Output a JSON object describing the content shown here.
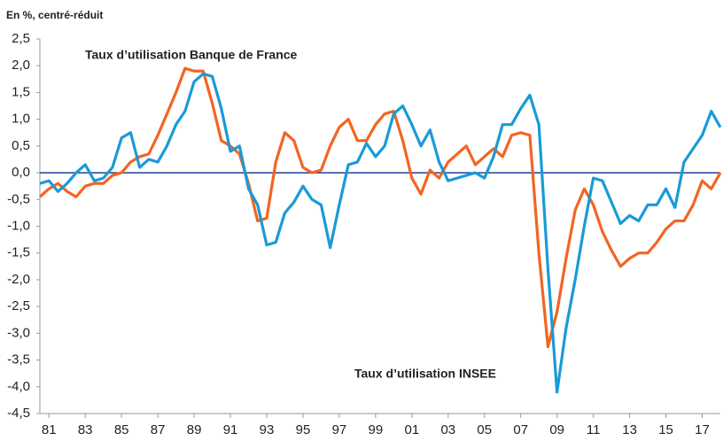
{
  "chart_data": {
    "type": "line",
    "title": "En %, centré-réduit",
    "annotations": [
      "Taux d’utilisation  Banque de France",
      "Taux d’utilisation  INSEE"
    ],
    "x": [
      1980.5,
      1981,
      1981.5,
      1982,
      1982.5,
      1983,
      1983.5,
      1984,
      1984.5,
      1985,
      1985.5,
      1986,
      1986.5,
      1987,
      1987.5,
      1988,
      1988.5,
      1989,
      1989.5,
      1990,
      1990.5,
      1991,
      1991.5,
      1992,
      1992.5,
      1993,
      1993.5,
      1994,
      1994.5,
      1995,
      1995.5,
      1996,
      1996.5,
      1997,
      1997.5,
      1998,
      1998.5,
      1999,
      1999.5,
      2000,
      2000.5,
      2001,
      2001.5,
      2002,
      2002.5,
      2003,
      2003.5,
      2004,
      2004.5,
      2005,
      2005.5,
      2006,
      2006.5,
      2007,
      2007.5,
      2008,
      2008.5,
      2009,
      2009.5,
      2010,
      2010.5,
      2011,
      2011.5,
      2012,
      2012.5,
      2013,
      2013.5,
      2014,
      2014.5,
      2015,
      2015.5,
      2016,
      2016.5,
      2017,
      2017.5,
      2018
    ],
    "series": [
      {
        "name": "Taux d’utilisation  Banque de France",
        "color": "#f26522",
        "values": [
          -0.45,
          -0.3,
          -0.2,
          -0.35,
          -0.45,
          -0.25,
          -0.2,
          -0.2,
          -0.05,
          0.0,
          0.2,
          0.3,
          0.35,
          0.7,
          1.1,
          1.5,
          1.95,
          1.9,
          1.9,
          1.3,
          0.6,
          0.5,
          0.35,
          -0.2,
          -0.9,
          -0.85,
          0.2,
          0.75,
          0.6,
          0.1,
          0.0,
          0.05,
          0.5,
          0.85,
          1.0,
          0.6,
          0.6,
          0.9,
          1.1,
          1.15,
          0.6,
          -0.1,
          -0.4,
          0.05,
          -0.1,
          0.2,
          0.35,
          0.5,
          0.15,
          0.3,
          0.45,
          0.3,
          0.7,
          0.75,
          0.7,
          -1.5,
          -3.25,
          -2.6,
          -1.6,
          -0.7,
          -0.3,
          -0.6,
          -1.1,
          -1.45,
          -1.75,
          -1.6,
          -1.5,
          -1.5,
          -1.3,
          -1.05,
          -0.9,
          -0.9,
          -0.6,
          -0.15,
          -0.3,
          0.0
        ]
      },
      {
        "name": "Taux d’utilisation  INSEE",
        "color": "#1a9ad6",
        "values": [
          -0.2,
          -0.15,
          -0.35,
          -0.2,
          0.0,
          0.15,
          -0.15,
          -0.1,
          0.1,
          0.65,
          0.75,
          0.1,
          0.25,
          0.2,
          0.5,
          0.9,
          1.15,
          1.7,
          1.85,
          1.8,
          1.2,
          0.4,
          0.5,
          -0.3,
          -0.6,
          -1.35,
          -1.3,
          -0.75,
          -0.55,
          -0.25,
          -0.5,
          -0.6,
          -1.4,
          -0.6,
          0.15,
          0.2,
          0.55,
          0.3,
          0.5,
          1.1,
          1.25,
          0.9,
          0.5,
          0.8,
          0.2,
          -0.15,
          -0.1,
          -0.05,
          0.0,
          -0.1,
          0.3,
          0.9,
          0.9,
          1.2,
          1.45,
          0.9,
          -1.8,
          -4.1,
          -2.9,
          -2.0,
          -1.0,
          -0.1,
          -0.15,
          -0.55,
          -0.95,
          -0.8,
          -0.9,
          -0.6,
          -0.6,
          -0.3,
          -0.65,
          0.2,
          0.45,
          0.7,
          1.15,
          0.85
        ]
      }
    ],
    "xlim": [
      1980.5,
      2018
    ],
    "xticks": [
      {
        "value": 1981,
        "label": "81"
      },
      {
        "value": 1983,
        "label": "83"
      },
      {
        "value": 1985,
        "label": "85"
      },
      {
        "value": 1987,
        "label": "87"
      },
      {
        "value": 1989,
        "label": "89"
      },
      {
        "value": 1991,
        "label": "91"
      },
      {
        "value": 1993,
        "label": "93"
      },
      {
        "value": 1995,
        "label": "95"
      },
      {
        "value": 1997,
        "label": "97"
      },
      {
        "value": 1999,
        "label": "99"
      },
      {
        "value": 2001,
        "label": "01"
      },
      {
        "value": 2003,
        "label": "03"
      },
      {
        "value": 2005,
        "label": "05"
      },
      {
        "value": 2007,
        "label": "07"
      },
      {
        "value": 2009,
        "label": "09"
      },
      {
        "value": 2011,
        "label": "11"
      },
      {
        "value": 2013,
        "label": "13"
      },
      {
        "value": 2015,
        "label": "15"
      },
      {
        "value": 2017,
        "label": "17"
      }
    ],
    "ylim": [
      -4.5,
      2.5
    ],
    "yticks": [
      {
        "value": 2.5,
        "label": "2,5"
      },
      {
        "value": 2,
        "label": "2,0"
      },
      {
        "value": 1.5,
        "label": "1,5"
      },
      {
        "value": 1,
        "label": "1,0"
      },
      {
        "value": 0.5,
        "label": "0,5"
      },
      {
        "value": 0,
        "label": "0,0"
      },
      {
        "value": -0.5,
        "label": "-0,5"
      },
      {
        "value": -1,
        "label": "-1,0"
      },
      {
        "value": -1.5,
        "label": "-1,5"
      },
      {
        "value": -2,
        "label": "-2,0"
      },
      {
        "value": -2.5,
        "label": "-2,5"
      },
      {
        "value": -3,
        "label": "-3,0"
      },
      {
        "value": -3.5,
        "label": "-3,5"
      },
      {
        "value": -4,
        "label": "-4,0"
      },
      {
        "value": -4.5,
        "label": "-4,5"
      }
    ],
    "zero_line": true,
    "zero_line_color": "#1f3d99",
    "grid": false
  }
}
